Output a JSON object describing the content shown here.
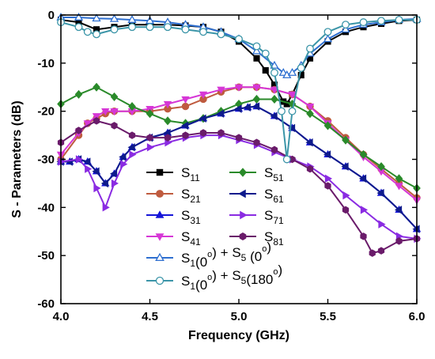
{
  "chart_data": {
    "type": "line",
    "xlabel": "Frequency (GHz)",
    "ylabel": "S - Parameters (dB)",
    "xlim": [
      4.0,
      6.0
    ],
    "ylim": [
      -60,
      0
    ],
    "xticks": [
      "4.0",
      "4.5",
      "5.0",
      "5.5",
      "6.0"
    ],
    "xtick_values": [
      4.0,
      4.5,
      5.0,
      5.5,
      6.0
    ],
    "yticks": [
      "0",
      "-10",
      "-20",
      "-30",
      "-40",
      "-50",
      "-60"
    ],
    "ytick_values": [
      0,
      -10,
      -20,
      -30,
      -40,
      -50,
      -60
    ],
    "grid": false,
    "legend_position": "center",
    "series": [
      {
        "id": "s11",
        "name": "S11",
        "label_main": "S",
        "label_sub": "11",
        "color": "#000000",
        "marker": "square",
        "filled": true,
        "x": [
          4.0,
          4.1,
          4.2,
          4.3,
          4.4,
          4.5,
          4.6,
          4.7,
          4.8,
          4.9,
          5.0,
          5.1,
          5.15,
          5.2,
          5.25,
          5.27,
          5.3,
          5.35,
          5.4,
          5.5,
          5.6,
          5.7,
          5.8,
          5.9,
          6.0
        ],
        "y": [
          -1,
          -1.5,
          -3,
          -2.5,
          -2,
          -2,
          -2,
          -2.2,
          -2.5,
          -3.5,
          -5.5,
          -9,
          -11.5,
          -14.5,
          -18,
          -18.5,
          -16.5,
          -12.5,
          -9,
          -5.5,
          -3.5,
          -2.5,
          -1.8,
          -1.2,
          -1
        ]
      },
      {
        "id": "s21",
        "name": "S21",
        "label_main": "S",
        "label_sub": "21",
        "color": "#bf5b3f",
        "marker": "circle",
        "filled": true,
        "x": [
          4.0,
          4.1,
          4.15,
          4.2,
          4.25,
          4.3,
          4.4,
          4.5,
          4.6,
          4.7,
          4.8,
          4.9,
          5.0,
          5.1,
          5.2,
          5.3,
          5.4,
          5.5,
          5.6,
          5.7,
          5.8,
          5.9,
          6.0
        ],
        "y": [
          -30,
          -25,
          -22.5,
          -21.5,
          -20.5,
          -20,
          -20,
          -20,
          -19.5,
          -19,
          -17.5,
          -16,
          -15,
          -15,
          -15.5,
          -16.5,
          -19,
          -22,
          -25.5,
          -29,
          -32,
          -35,
          -38
        ]
      },
      {
        "id": "s31",
        "name": "S31",
        "label_main": "S",
        "label_sub": "31",
        "color": "#1515d8",
        "marker": "triangle-up",
        "filled": true,
        "x": [
          4.0,
          4.05,
          4.1,
          4.15,
          4.2,
          4.25,
          4.3,
          4.35,
          4.4,
          4.5,
          4.6,
          4.7,
          4.8,
          4.9,
          5.0,
          5.05,
          5.1,
          5.2,
          5.3,
          5.4,
          5.5,
          5.6,
          5.7,
          5.8,
          5.9,
          6.0
        ],
        "y": [
          -30.5,
          -30.5,
          -30,
          -30.5,
          -32.5,
          -35,
          -33,
          -29.5,
          -27.5,
          -25.5,
          -24.5,
          -23,
          -21.5,
          -20.5,
          -19.5,
          -19.2,
          -19,
          -21,
          -23.5,
          -26.5,
          -29,
          -31.5,
          -34,
          -37,
          -40.5,
          -44.5
        ]
      },
      {
        "id": "s41",
        "name": "S41",
        "label_main": "S",
        "label_sub": "41",
        "color": "#d637d6",
        "marker": "triangle-down",
        "filled": true,
        "x": [
          4.0,
          4.1,
          4.15,
          4.2,
          4.25,
          4.3,
          4.4,
          4.5,
          4.6,
          4.7,
          4.8,
          4.9,
          5.0,
          5.1,
          5.2,
          5.3,
          5.4,
          5.5,
          5.6,
          5.7,
          5.8,
          5.9,
          6.0
        ],
        "y": [
          -29,
          -24.5,
          -22.5,
          -21,
          -20,
          -20,
          -20,
          -19.5,
          -18.5,
          -17.5,
          -16.5,
          -15.5,
          -15,
          -15,
          -15.5,
          -16.5,
          -19,
          -22.5,
          -26,
          -29.5,
          -32.5,
          -35.5,
          -38.5
        ]
      },
      {
        "id": "s51",
        "name": "S51",
        "label_main": "S",
        "label_sub": "51",
        "color": "#2a8a2a",
        "marker": "diamond",
        "filled": true,
        "x": [
          4.0,
          4.1,
          4.2,
          4.3,
          4.4,
          4.5,
          4.6,
          4.7,
          4.8,
          4.9,
          5.0,
          5.1,
          5.2,
          5.3,
          5.4,
          5.5,
          5.6,
          5.7,
          5.8,
          5.9,
          6.0
        ],
        "y": [
          -18.5,
          -16.5,
          -15,
          -17,
          -19,
          -20.5,
          -22,
          -22.5,
          -21.5,
          -20,
          -18.5,
          -17.5,
          -17.5,
          -18.5,
          -20.5,
          -23,
          -26,
          -29,
          -31.5,
          -34,
          -36
        ]
      },
      {
        "id": "s61",
        "name": "S61",
        "label_main": "S",
        "label_sub": "61",
        "color": "#0e1a8c",
        "marker": "triangle-left",
        "filled": true,
        "x": [
          4.0,
          4.05,
          4.1,
          4.15,
          4.2,
          4.25,
          4.3,
          4.35,
          4.4,
          4.5,
          4.6,
          4.7,
          4.8,
          4.9,
          5.0,
          5.05,
          5.1,
          5.2,
          5.3,
          5.4,
          5.5,
          5.6,
          5.7,
          5.8,
          5.9,
          6.0
        ],
        "y": [
          -30.5,
          -30.5,
          -30,
          -30.5,
          -32.5,
          -35,
          -33,
          -29.5,
          -27.5,
          -25.5,
          -24.5,
          -23,
          -21.5,
          -20.5,
          -19.5,
          -19.2,
          -19,
          -21,
          -23.5,
          -26.5,
          -29,
          -31.5,
          -34,
          -37,
          -40.5,
          -44.5
        ]
      },
      {
        "id": "s71",
        "name": "S71",
        "label_main": "S",
        "label_sub": "71",
        "color": "#8a2be2",
        "marker": "triangle-right",
        "filled": true,
        "x": [
          4.0,
          4.1,
          4.15,
          4.2,
          4.25,
          4.3,
          4.35,
          4.4,
          4.5,
          4.6,
          4.7,
          4.8,
          4.9,
          5.0,
          5.1,
          5.2,
          5.3,
          5.4,
          5.5,
          5.6,
          5.7,
          5.8,
          5.9,
          6.0
        ],
        "y": [
          -30.5,
          -30,
          -32,
          -36,
          -40,
          -35,
          -31,
          -29,
          -27.5,
          -26.5,
          -25.5,
          -25,
          -25,
          -26,
          -27,
          -28.5,
          -30,
          -31.5,
          -34,
          -37.5,
          -40.5,
          -43.5,
          -46,
          -46.5
        ]
      },
      {
        "id": "s81",
        "name": "S81",
        "label_main": "S",
        "label_sub": "81",
        "color": "#6a1b6a",
        "marker": "hexagon",
        "filled": true,
        "x": [
          4.0,
          4.1,
          4.2,
          4.3,
          4.4,
          4.5,
          4.6,
          4.7,
          4.8,
          4.9,
          5.0,
          5.1,
          5.2,
          5.3,
          5.4,
          5.5,
          5.6,
          5.7,
          5.75,
          5.8,
          5.9,
          6.0
        ],
        "y": [
          -26.5,
          -24,
          -22,
          -23,
          -25,
          -25.5,
          -25.5,
          -25,
          -24.5,
          -24.5,
          -25.5,
          -26.5,
          -28,
          -30,
          -32,
          -35.5,
          -40.5,
          -46,
          -49.5,
          -49,
          -47,
          -46.5
        ]
      },
      {
        "id": "s1_0_s5_0",
        "name": "S1(0°) + S5 (0°)",
        "label_parts": [
          [
            "S",
            ""
          ],
          [
            "1",
            "sub"
          ],
          [
            "(0",
            ""
          ],
          [
            "o",
            "sup"
          ],
          [
            ") + S",
            ""
          ],
          [
            "5",
            "sub"
          ],
          [
            " (0",
            ""
          ],
          [
            "o",
            "sup"
          ],
          [
            ")",
            ""
          ]
        ],
        "color": "#2e6fd0",
        "marker": "triangle-up",
        "filled": false,
        "x": [
          4.0,
          4.1,
          4.2,
          4.3,
          4.4,
          4.5,
          4.6,
          4.7,
          4.8,
          4.9,
          5.0,
          5.1,
          5.2,
          5.25,
          5.27,
          5.3,
          5.35,
          5.4,
          5.5,
          5.6,
          5.7,
          5.8,
          5.9,
          6.0
        ],
        "y": [
          -0.5,
          -0.5,
          -0.7,
          -0.8,
          -1,
          -1.2,
          -1.5,
          -2,
          -2.5,
          -3.5,
          -5,
          -7.5,
          -10.5,
          -12,
          -12.5,
          -12,
          -10.5,
          -8,
          -5,
          -3,
          -2,
          -1.5,
          -1,
          -0.8
        ]
      },
      {
        "id": "s1_0_s5_180",
        "name": "S1(0°) + S5(180°)",
        "label_parts": [
          [
            "S",
            ""
          ],
          [
            "1",
            "sub"
          ],
          [
            "(0",
            ""
          ],
          [
            "o",
            "sup"
          ],
          [
            ") + S",
            ""
          ],
          [
            "5",
            "sub"
          ],
          [
            "(180",
            ""
          ],
          [
            "o",
            "sup"
          ],
          [
            ")",
            ""
          ]
        ],
        "color": "#3b95a8",
        "marker": "circle",
        "filled": false,
        "x": [
          4.0,
          4.1,
          4.15,
          4.2,
          4.3,
          4.4,
          4.5,
          4.6,
          4.7,
          4.8,
          4.9,
          5.0,
          5.1,
          5.15,
          5.2,
          5.24,
          5.27,
          5.3,
          5.35,
          5.4,
          5.5,
          5.6,
          5.7,
          5.8,
          5.9,
          6.0
        ],
        "y": [
          -1.5,
          -2.5,
          -3.5,
          -4,
          -3,
          -2.5,
          -2.5,
          -2.5,
          -3,
          -3.5,
          -4,
          -5,
          -6.5,
          -8,
          -12,
          -20,
          -30,
          -20,
          -11,
          -7,
          -3.5,
          -2,
          -1.5,
          -1.2,
          -1,
          -1
        ]
      }
    ]
  }
}
